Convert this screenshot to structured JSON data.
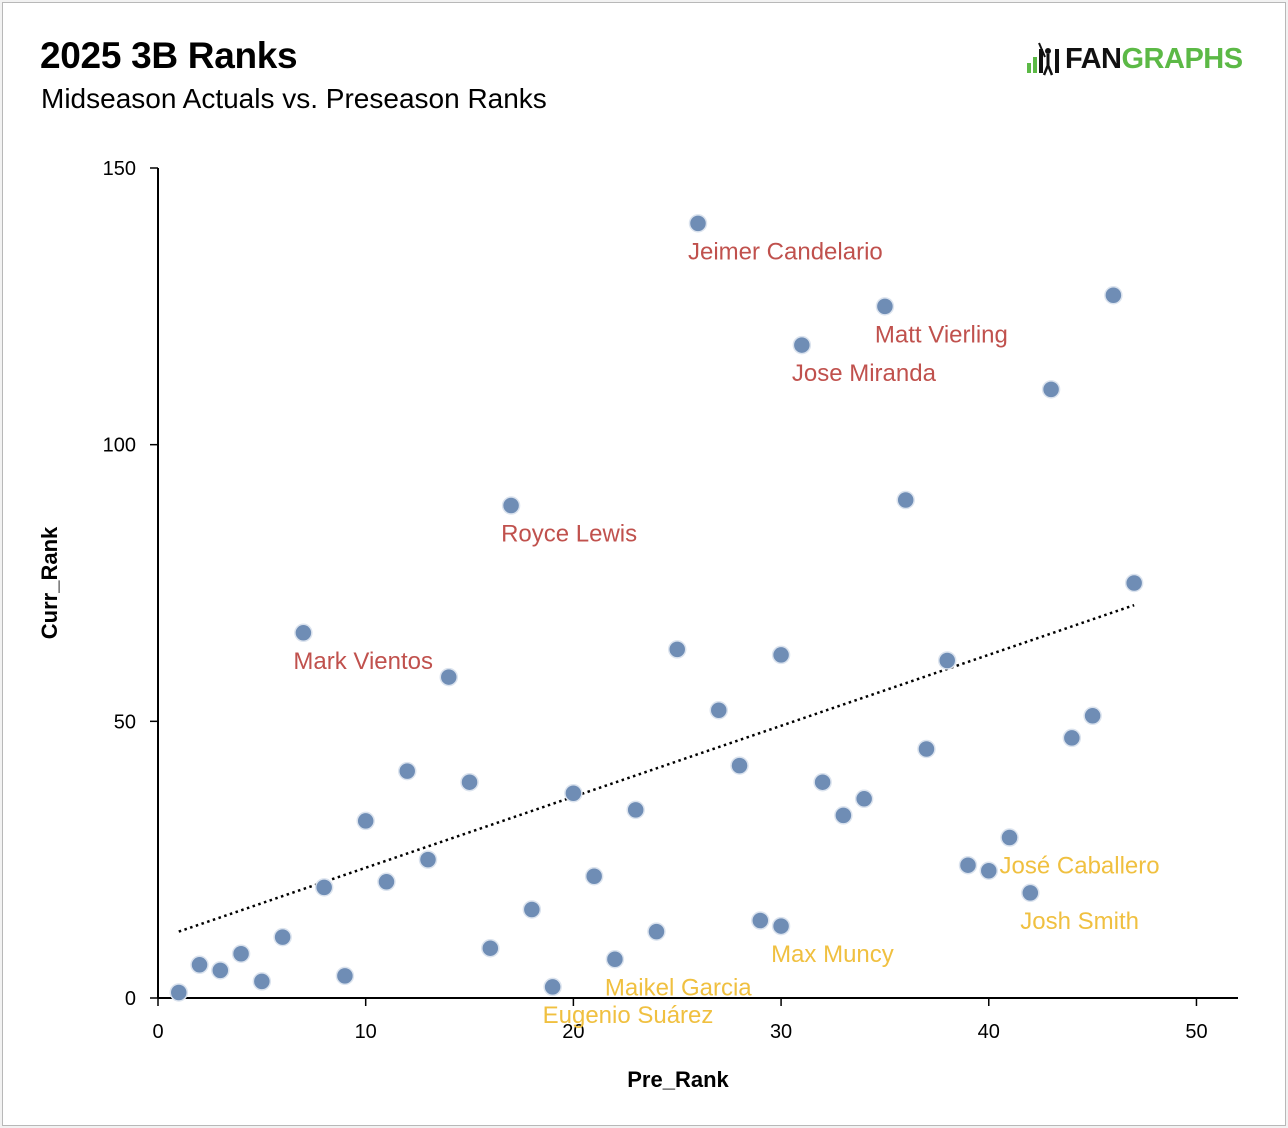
{
  "header": {
    "title": "2025 3B Ranks",
    "subtitle": "Midseason Actuals vs. Preseason Ranks"
  },
  "logo": {
    "part1": "FAN",
    "part2": "GRAPHS",
    "icon": "fangraphs-bars-batter-icon",
    "dark_color": "#111111",
    "green_color": "#5cb946"
  },
  "chart_data": {
    "type": "scatter",
    "xlabel": "Pre_Rank",
    "ylabel": "Curr_Rank",
    "xlim": [
      0,
      52
    ],
    "ylim": [
      0,
      150
    ],
    "xticks": [
      0,
      10,
      20,
      30,
      40,
      50
    ],
    "yticks": [
      0,
      50,
      100,
      150
    ],
    "grid": false,
    "point_color": "#6f8db5",
    "trendline": {
      "style": "dotted",
      "x1": 1,
      "y1": 12,
      "x2": 47,
      "y2": 71
    },
    "points": [
      {
        "x": 1,
        "y": 1
      },
      {
        "x": 2,
        "y": 6
      },
      {
        "x": 3,
        "y": 5
      },
      {
        "x": 4,
        "y": 8
      },
      {
        "x": 5,
        "y": 3
      },
      {
        "x": 6,
        "y": 11
      },
      {
        "x": 7,
        "y": 66
      },
      {
        "x": 8,
        "y": 20
      },
      {
        "x": 9,
        "y": 4
      },
      {
        "x": 10,
        "y": 32
      },
      {
        "x": 11,
        "y": 21
      },
      {
        "x": 12,
        "y": 41
      },
      {
        "x": 13,
        "y": 25
      },
      {
        "x": 14,
        "y": 58
      },
      {
        "x": 15,
        "y": 39
      },
      {
        "x": 16,
        "y": 9
      },
      {
        "x": 17,
        "y": 89
      },
      {
        "x": 18,
        "y": 16
      },
      {
        "x": 19,
        "y": 2
      },
      {
        "x": 20,
        "y": 37
      },
      {
        "x": 21,
        "y": 22
      },
      {
        "x": 22,
        "y": 7
      },
      {
        "x": 23,
        "y": 34
      },
      {
        "x": 24,
        "y": 12
      },
      {
        "x": 25,
        "y": 63
      },
      {
        "x": 26,
        "y": 140
      },
      {
        "x": 27,
        "y": 52
      },
      {
        "x": 28,
        "y": 42
      },
      {
        "x": 29,
        "y": 14
      },
      {
        "x": 30,
        "y": 62
      },
      {
        "x": 30,
        "y": 13
      },
      {
        "x": 31,
        "y": 118
      },
      {
        "x": 32,
        "y": 39
      },
      {
        "x": 33,
        "y": 33
      },
      {
        "x": 34,
        "y": 36
      },
      {
        "x": 35,
        "y": 125
      },
      {
        "x": 36,
        "y": 90
      },
      {
        "x": 37,
        "y": 45
      },
      {
        "x": 38,
        "y": 61
      },
      {
        "x": 39,
        "y": 24
      },
      {
        "x": 40,
        "y": 23
      },
      {
        "x": 41,
        "y": 29
      },
      {
        "x": 42,
        "y": 19
      },
      {
        "x": 43,
        "y": 110
      },
      {
        "x": 44,
        "y": 47
      },
      {
        "x": 45,
        "y": 51
      },
      {
        "x": 46,
        "y": 127
      },
      {
        "x": 47,
        "y": 75
      }
    ],
    "annotations": [
      {
        "text": "Jeimer Candelario",
        "x": 26,
        "y": 140,
        "group": "under",
        "anchor": "start"
      },
      {
        "text": "Matt Vierling",
        "x": 35,
        "y": 125,
        "group": "under",
        "anchor": "start"
      },
      {
        "text": "Jose Miranda",
        "x": 31,
        "y": 118,
        "group": "under",
        "anchor": "start"
      },
      {
        "text": "Royce Lewis",
        "x": 17,
        "y": 89,
        "group": "under",
        "anchor": "start"
      },
      {
        "text": "Mark Vientos",
        "x": 7,
        "y": 66,
        "group": "under",
        "anchor": "start"
      },
      {
        "text": "José Caballero",
        "x": 41,
        "y": 29,
        "group": "over",
        "anchor": "start"
      },
      {
        "text": "Josh Smith",
        "x": 42,
        "y": 19,
        "group": "over",
        "anchor": "start"
      },
      {
        "text": "Max Muncy",
        "x": 30,
        "y": 13,
        "group": "over",
        "anchor": "start"
      },
      {
        "text": "Maikel Garcia",
        "x": 22,
        "y": 7,
        "group": "over",
        "anchor": "start"
      },
      {
        "text": "Eugenio Suárez",
        "x": 19,
        "y": 2,
        "group": "over",
        "anchor": "start"
      }
    ],
    "label_colors": {
      "under": "#c0514d",
      "over": "#f0c040"
    }
  }
}
